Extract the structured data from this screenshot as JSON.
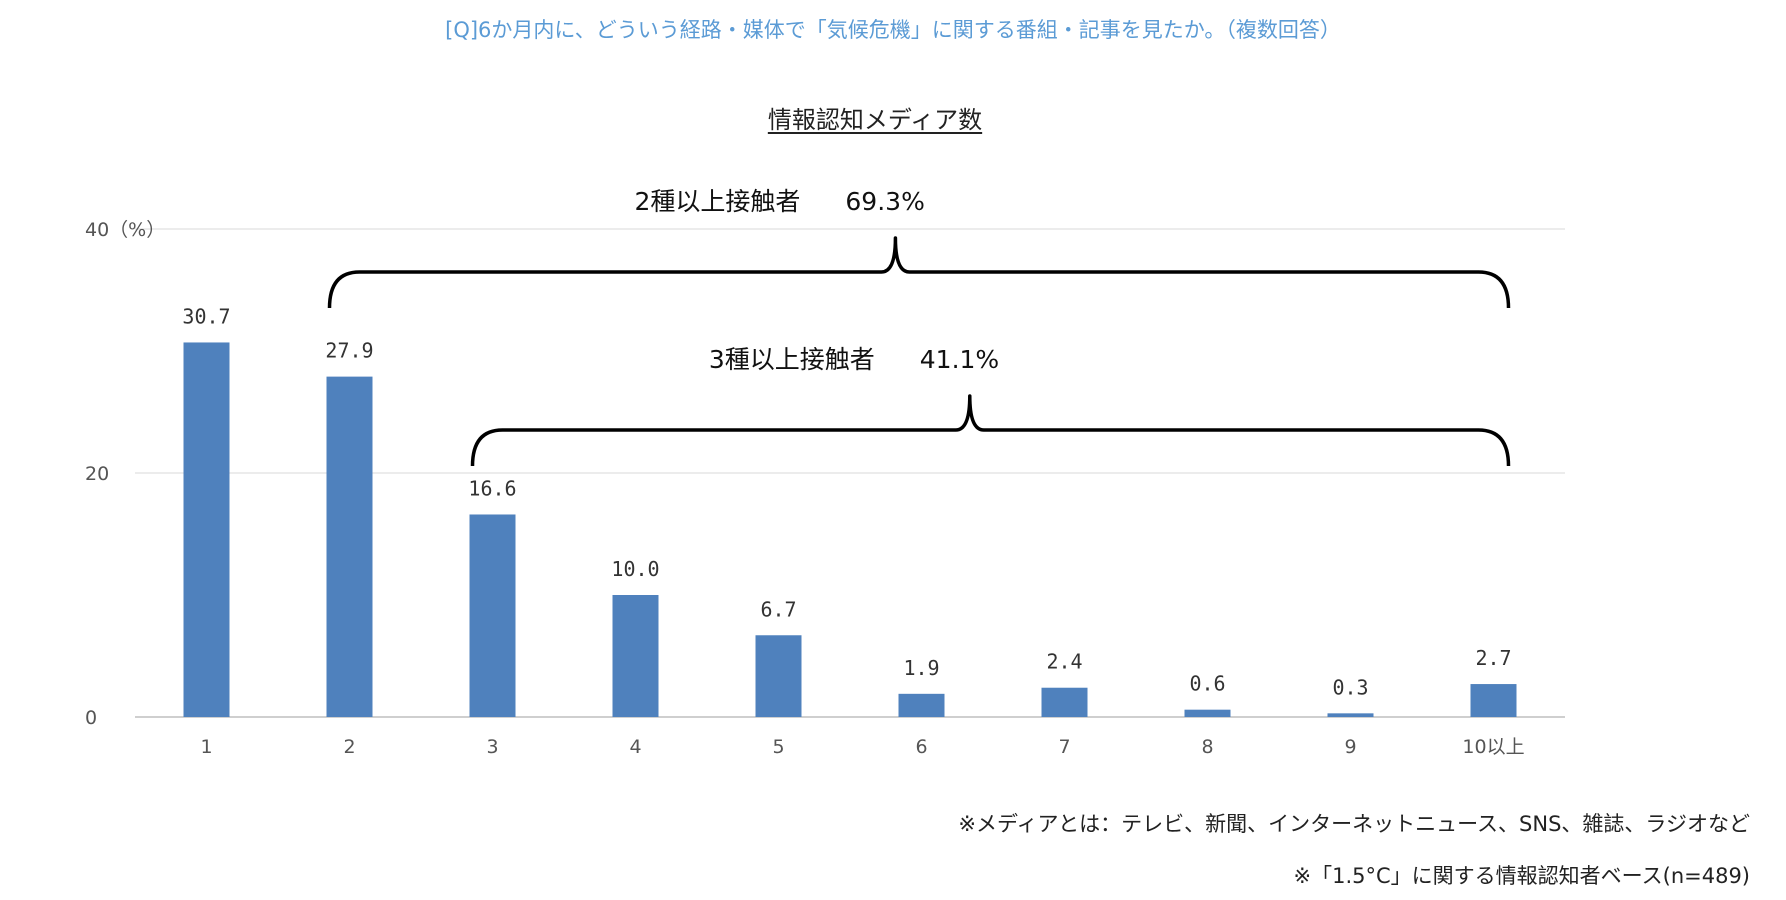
{
  "question": "[Q]6か月内に、どういう経路・媒体で「気候危機」に関する番組・記事を見たか。（複数回答）",
  "notes": {
    "media": "※メディアとは：テレビ、新聞、インターネットニュース、SNS、雑誌、ラジオなど",
    "base": "※「1.5°C」に関する情報認知者ベース(n=489)"
  },
  "brackets": [
    {
      "label": "2種以上接触者",
      "value": "69.3%",
      "from_category": "2",
      "to_category": "10以上"
    },
    {
      "label": "3種以上接触者",
      "value": "41.1%",
      "from_category": "3",
      "to_category": "10以上"
    }
  ],
  "colors": {
    "bar": "#4f81bd",
    "grid": "#d9d9d9",
    "axis": "#bfbfbf",
    "question": "#5b9bd5"
  },
  "chart_data": {
    "type": "bar",
    "title": "情報認知メディア数",
    "categories": [
      "1",
      "2",
      "3",
      "4",
      "5",
      "6",
      "7",
      "8",
      "9",
      "10以上"
    ],
    "values": [
      30.7,
      27.9,
      16.6,
      10.0,
      6.7,
      1.9,
      2.4,
      0.6,
      0.3,
      2.7
    ],
    "value_labels": [
      "30.7",
      "27.9",
      "16.6",
      "10.0",
      "6.7",
      "1.9",
      "2.4",
      "0.6",
      "0.3",
      "2.7"
    ],
    "yticks": [
      0,
      20,
      40
    ],
    "ytick_labels": [
      "0",
      "20",
      "40（%）"
    ],
    "ylabel": "%",
    "xlabel": "",
    "ylim": [
      0,
      40
    ],
    "grid": true,
    "legend": false
  }
}
